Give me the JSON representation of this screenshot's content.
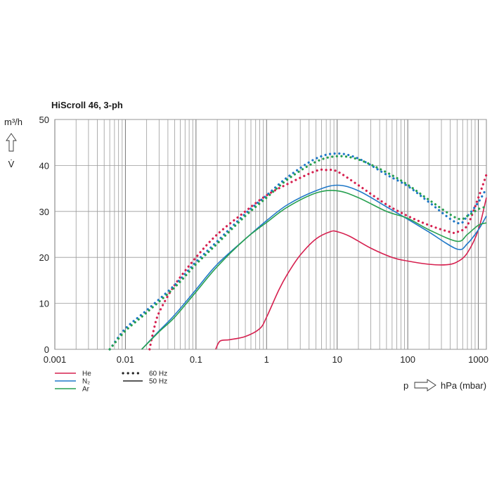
{
  "chart_data": {
    "type": "line",
    "title": "HiScroll 46, 3-ph",
    "ylabel_unit": "m³/h",
    "ylabel_symbol": "V̇",
    "xlabel_symbol": "p",
    "xlabel_unit": "hPa (mbar)",
    "x_scale": "log",
    "xlim": [
      0.001,
      1300
    ],
    "ylim": [
      0,
      50
    ],
    "x_ticks": [
      0.001,
      0.01,
      0.1,
      1,
      10,
      100,
      1000
    ],
    "x_tick_labels": [
      "0.001",
      "0.01",
      "0.1",
      "1",
      "10",
      "100",
      "1000"
    ],
    "y_ticks": [
      0,
      10,
      20,
      30,
      40,
      50
    ],
    "y_tick_labels": [
      "0",
      "10",
      "20",
      "30",
      "40",
      "50"
    ],
    "grid": true,
    "legend_gas": [
      {
        "name": "He",
        "color": "#d6204f"
      },
      {
        "name": "N₂",
        "color": "#1f78c8"
      },
      {
        "name": "Ar",
        "color": "#27a050"
      }
    ],
    "legend_freq": [
      {
        "name": "60 Hz",
        "style": "dotted"
      },
      {
        "name": "50 Hz",
        "style": "solid"
      }
    ],
    "series": [
      {
        "gas": "He",
        "freq": "50 Hz",
        "color": "#d6204f",
        "style": "solid",
        "points": [
          [
            0.19,
            0
          ],
          [
            0.22,
            1.8
          ],
          [
            0.3,
            2.1
          ],
          [
            0.5,
            2.8
          ],
          [
            0.8,
            4.5
          ],
          [
            1.0,
            7
          ],
          [
            1.5,
            13
          ],
          [
            2,
            16.5
          ],
          [
            3,
            20.5
          ],
          [
            5,
            24
          ],
          [
            8,
            25.6
          ],
          [
            10,
            25.6
          ],
          [
            15,
            24.6
          ],
          [
            30,
            22
          ],
          [
            60,
            20
          ],
          [
            100,
            19.2
          ],
          [
            200,
            18.5
          ],
          [
            350,
            18.4
          ],
          [
            500,
            19
          ],
          [
            700,
            21
          ],
          [
            1000,
            26
          ],
          [
            1300,
            33
          ]
        ]
      },
      {
        "gas": "He",
        "freq": "60 Hz",
        "color": "#d6204f",
        "style": "dotted",
        "points": [
          [
            0.022,
            0
          ],
          [
            0.025,
            4
          ],
          [
            0.03,
            8
          ],
          [
            0.05,
            14
          ],
          [
            0.1,
            20
          ],
          [
            0.2,
            25
          ],
          [
            0.5,
            30
          ],
          [
            1,
            33.5
          ],
          [
            2,
            36
          ],
          [
            5,
            38.8
          ],
          [
            7,
            39
          ],
          [
            10,
            38.7
          ],
          [
            20,
            35.7
          ],
          [
            50,
            31.5
          ],
          [
            100,
            29
          ],
          [
            200,
            27
          ],
          [
            400,
            25.5
          ],
          [
            500,
            25.5
          ],
          [
            700,
            27
          ],
          [
            1000,
            33
          ],
          [
            1300,
            38
          ]
        ]
      },
      {
        "gas": "N₂",
        "freq": "50 Hz",
        "color": "#1f78c8",
        "style": "solid",
        "points": [
          [
            0.017,
            0
          ],
          [
            0.03,
            4
          ],
          [
            0.05,
            7.5
          ],
          [
            0.1,
            13
          ],
          [
            0.2,
            18.5
          ],
          [
            0.5,
            24
          ],
          [
            1,
            28
          ],
          [
            2,
            31.5
          ],
          [
            5,
            34.5
          ],
          [
            10,
            35.7
          ],
          [
            20,
            34.5
          ],
          [
            50,
            31
          ],
          [
            100,
            28.3
          ],
          [
            200,
            25.5
          ],
          [
            500,
            21.8
          ],
          [
            700,
            23
          ],
          [
            1000,
            26
          ],
          [
            1300,
            29
          ]
        ]
      },
      {
        "gas": "N₂",
        "freq": "60 Hz",
        "color": "#1f78c8",
        "style": "dotted",
        "points": [
          [
            0.006,
            0
          ],
          [
            0.01,
            4.5
          ],
          [
            0.02,
            8.5
          ],
          [
            0.05,
            14
          ],
          [
            0.1,
            19
          ],
          [
            0.2,
            23.5
          ],
          [
            0.5,
            29.5
          ],
          [
            1,
            33.5
          ],
          [
            2,
            37.5
          ],
          [
            5,
            41.5
          ],
          [
            10,
            42.6
          ],
          [
            20,
            41.5
          ],
          [
            50,
            38
          ],
          [
            100,
            35.5
          ],
          [
            200,
            32
          ],
          [
            500,
            27.5
          ],
          [
            700,
            29
          ],
          [
            1000,
            32
          ],
          [
            1300,
            35
          ]
        ]
      },
      {
        "gas": "Ar",
        "freq": "50 Hz",
        "color": "#27a050",
        "style": "solid",
        "points": [
          [
            0.017,
            0
          ],
          [
            0.03,
            3.8
          ],
          [
            0.05,
            7
          ],
          [
            0.1,
            12.5
          ],
          [
            0.2,
            18
          ],
          [
            0.5,
            24
          ],
          [
            1,
            27.6
          ],
          [
            2,
            31
          ],
          [
            5,
            34
          ],
          [
            10,
            34.5
          ],
          [
            20,
            33
          ],
          [
            50,
            30
          ],
          [
            100,
            28.5
          ],
          [
            200,
            26
          ],
          [
            500,
            23.5
          ],
          [
            700,
            25
          ],
          [
            1000,
            27
          ],
          [
            1300,
            27.5
          ]
        ]
      },
      {
        "gas": "Ar",
        "freq": "60 Hz",
        "color": "#27a050",
        "style": "dotted",
        "points": [
          [
            0.006,
            0
          ],
          [
            0.01,
            4
          ],
          [
            0.02,
            8
          ],
          [
            0.05,
            13.5
          ],
          [
            0.1,
            18.5
          ],
          [
            0.2,
            23
          ],
          [
            0.5,
            29
          ],
          [
            1,
            33
          ],
          [
            2,
            37
          ],
          [
            5,
            40.8
          ],
          [
            10,
            42
          ],
          [
            20,
            41.3
          ],
          [
            50,
            38.5
          ],
          [
            100,
            35.8
          ],
          [
            200,
            32.5
          ],
          [
            500,
            28.5
          ],
          [
            700,
            29
          ],
          [
            1000,
            30.5
          ],
          [
            1300,
            31
          ]
        ]
      }
    ]
  }
}
